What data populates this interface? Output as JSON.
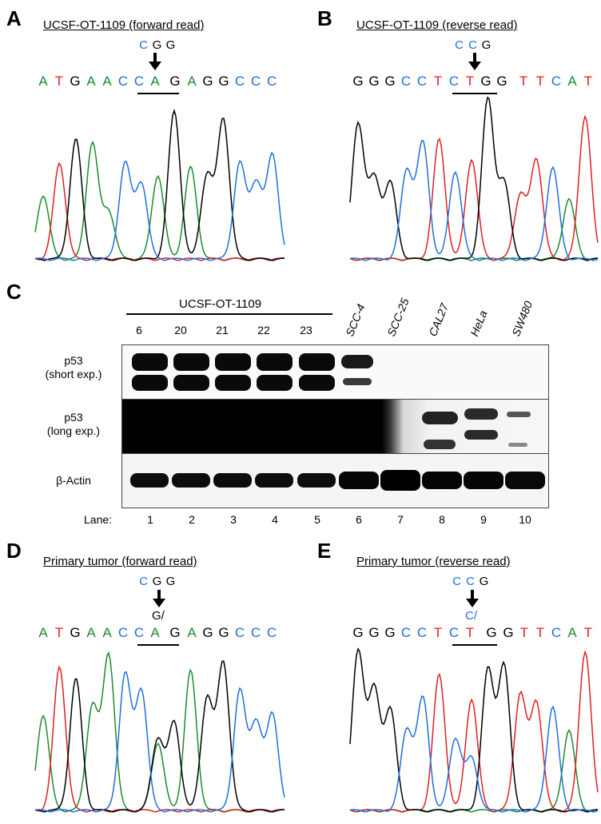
{
  "panel_A": {
    "letter": "A",
    "title": "UCSF-OT-1109 (forward read)",
    "codon": [
      "C",
      "G",
      "G"
    ],
    "sequence": [
      "A",
      "T",
      "G",
      "A",
      "A",
      "C",
      "C",
      "A",
      "G",
      "A",
      "G",
      "G",
      "C",
      "C",
      "C"
    ]
  },
  "panel_B": {
    "letter": "B",
    "title": "UCSF-OT-1109 (reverse read)",
    "codon": [
      "C",
      "C",
      "G"
    ],
    "sequence": [
      "G",
      "G",
      "G",
      "C",
      "C",
      "T",
      "C",
      "T",
      "G",
      "G",
      "T",
      "T",
      "C",
      "A",
      "T"
    ]
  },
  "panel_C": {
    "letter": "C",
    "group_label": "UCSF-OT-1109",
    "clone_numbers": [
      "6",
      "20",
      "21",
      "22",
      "23"
    ],
    "cell_lines": [
      "SCC-4",
      "SCC-25",
      "CAL27",
      "HeLa",
      "SW480"
    ],
    "row_labels": {
      "p53_short_1": "p53",
      "p53_short_2": "(short exp.)",
      "p53_long_1": "p53",
      "p53_long_2": "(long exp.)",
      "actin": "β-Actin"
    },
    "lane_label": "Lane:",
    "lanes": [
      "1",
      "2",
      "3",
      "4",
      "5",
      "6",
      "7",
      "8",
      "9",
      "10"
    ]
  },
  "panel_D": {
    "letter": "D",
    "title": "Primary tumor (forward read)",
    "codon": [
      "C",
      "G",
      "G"
    ],
    "het_label": "G/",
    "sequence": [
      "A",
      "T",
      "G",
      "A",
      "A",
      "C",
      "C",
      "A",
      "G",
      "A",
      "G",
      "G",
      "C",
      "C",
      "C"
    ]
  },
  "panel_E": {
    "letter": "E",
    "title": "Primary tumor (reverse read)",
    "codon": [
      "C",
      "C",
      "G"
    ],
    "het_label": "C/",
    "sequence": [
      "G",
      "G",
      "G",
      "C",
      "C",
      "T",
      "C",
      "T",
      "G",
      "G",
      "T",
      "T",
      "C",
      "A",
      "T"
    ]
  },
  "colors": {
    "A": "#1a8c2c",
    "T": "#e02020",
    "G": "#000000",
    "C": "#1f6fe0"
  }
}
